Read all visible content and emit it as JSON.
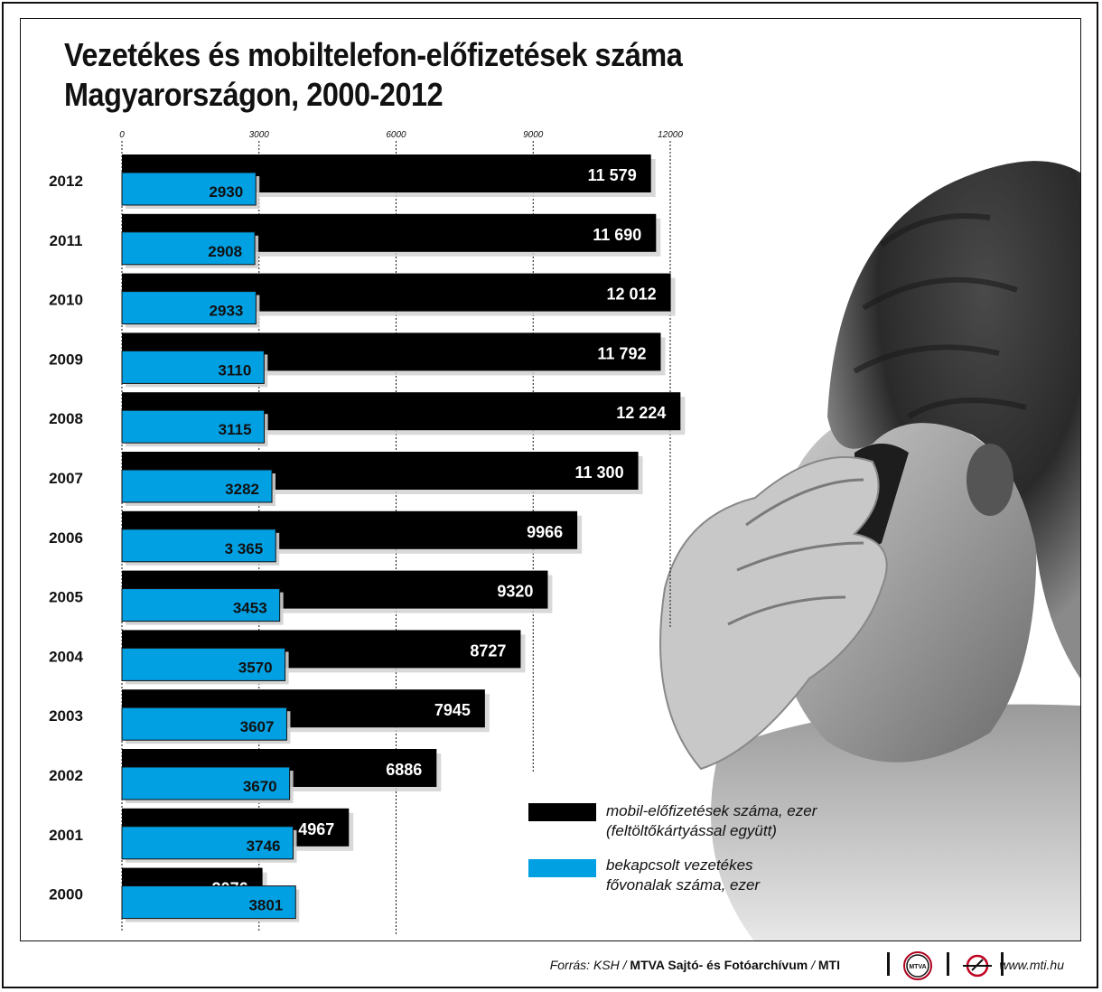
{
  "title_line1": "Vezetékes és mobiltelefon-előfizetések száma",
  "title_line2": "Magyarországon, 2000-2012",
  "colors": {
    "mobile": "#000000",
    "landline": "#00a0e3",
    "shadow": "#d0d0d0"
  },
  "chart_data": {
    "type": "bar",
    "orientation": "horizontal",
    "categories": [
      "2012",
      "2011",
      "2010",
      "2009",
      "2008",
      "2007",
      "2006",
      "2005",
      "2004",
      "2003",
      "2002",
      "2001",
      "2000"
    ],
    "xlim": [
      0,
      12000
    ],
    "x_ticks": [
      0,
      3000,
      6000,
      9000,
      12000
    ],
    "x_tick_labels": [
      "0",
      "3000",
      "6000",
      "9000",
      "12000"
    ],
    "grid": "dotted vertical",
    "legend_position": "bottom-right",
    "series": [
      {
        "name": "mobil-előfizetések száma, ezer (feltöltőkártyással együtt)",
        "values": [
          11579,
          11690,
          12012,
          11792,
          12224,
          11300,
          9966,
          9320,
          8727,
          7945,
          6886,
          4967,
          3076
        ],
        "labels": [
          "11 579",
          "11 690",
          "12 012",
          "11 792",
          "12 224",
          "11 300",
          "9966",
          "9320",
          "8727",
          "7945",
          "6886",
          "4967",
          "3076"
        ]
      },
      {
        "name": "bekapcsolt vezetékes fővonalak száma, ezer",
        "values": [
          2930,
          2908,
          2933,
          3110,
          3115,
          3282,
          3365,
          3453,
          3570,
          3607,
          3670,
          3746,
          3801
        ],
        "labels": [
          "2930",
          "2908",
          "2933",
          "3110",
          "3115",
          "3282",
          "3 365",
          "3453",
          "3570",
          "3607",
          "3670",
          "3746",
          "3801"
        ]
      }
    ]
  },
  "legend": {
    "mobile_line1": "mobil-előfizetések száma, ezer",
    "mobile_line2": "(feltöltőkártyással együtt)",
    "landline_line1": "bekapcsolt vezetékes",
    "landline_line2": "fővonalak száma, ezer"
  },
  "footer": {
    "source_prefix": "Forrás: KSH / ",
    "source_bold": "MTVA Sajtó- és Fotóarchívum",
    "source_sep": " / ",
    "source_mti": "MTI",
    "logo1_text": "MTVA",
    "website": "www.mti.hu"
  }
}
